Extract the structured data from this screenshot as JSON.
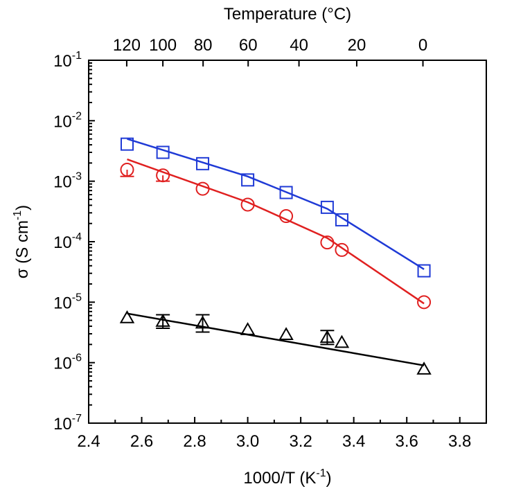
{
  "chart_data": {
    "type": "scatter",
    "xlabel": "1000/T (K",
    "xlabel_sup": "-1",
    "xlabel_close": ")",
    "ylabel": "σ (S cm",
    "ylabel_sup": "-1",
    "ylabel_close": ")",
    "top_xlabel": "Temperature (°C)",
    "xlim": [
      2.4,
      3.9
    ],
    "ylim_log10": [
      -7,
      -1
    ],
    "y_scale": "log",
    "x_ticks": [
      {
        "value": 2.4,
        "label": "2.4"
      },
      {
        "value": 2.6,
        "label": "2.6"
      },
      {
        "value": 2.8,
        "label": "2.8"
      },
      {
        "value": 3.0,
        "label": "3.0"
      },
      {
        "value": 3.2,
        "label": "3.2"
      },
      {
        "value": 3.4,
        "label": "3.4"
      },
      {
        "value": 3.6,
        "label": "3.6"
      },
      {
        "value": 3.8,
        "label": "3.8"
      }
    ],
    "y_ticks": [
      {
        "exp": -1,
        "base": "10",
        "sup": "-1"
      },
      {
        "exp": -2,
        "base": "10",
        "sup": "-2"
      },
      {
        "exp": -3,
        "base": "10",
        "sup": "-3"
      },
      {
        "exp": -4,
        "base": "10",
        "sup": "-4"
      },
      {
        "exp": -5,
        "base": "10",
        "sup": "-5"
      },
      {
        "exp": -6,
        "base": "10",
        "sup": "-6"
      },
      {
        "exp": -7,
        "base": "10",
        "sup": "-7"
      }
    ],
    "top_ticks": [
      {
        "celsius": 120,
        "label": "120"
      },
      {
        "celsius": 100,
        "label": "100"
      },
      {
        "celsius": 80,
        "label": "80"
      },
      {
        "celsius": 60,
        "label": "60"
      },
      {
        "celsius": 40,
        "label": "40"
      },
      {
        "celsius": 20,
        "label": "20"
      },
      {
        "celsius": 0,
        "label": "0"
      }
    ],
    "series": [
      {
        "marker": "square",
        "color": "#1f3ad6",
        "points": [
          {
            "x": 2.545,
            "y": 0.0041
          },
          {
            "x": 2.68,
            "y": 0.003
          },
          {
            "x": 2.83,
            "y": 0.00195
          },
          {
            "x": 3.0,
            "y": 0.00105
          },
          {
            "x": 3.145,
            "y": 0.00065
          },
          {
            "x": 3.3,
            "y": 0.00037
          },
          {
            "x": 3.355,
            "y": 0.00023
          },
          {
            "x": 3.665,
            "y": 3.3e-05
          }
        ],
        "fit": [
          {
            "x": 2.545,
            "y": 0.005
          },
          {
            "x": 3.0,
            "y": 0.0012
          },
          {
            "x": 3.3,
            "y": 0.00035
          },
          {
            "x": 3.665,
            "y": 3.5e-05
          }
        ]
      },
      {
        "marker": "circle",
        "color": "#e02020",
        "points": [
          {
            "x": 2.545,
            "y": 0.00155,
            "err_low": 0.0012
          },
          {
            "x": 2.68,
            "y": 0.00125,
            "err_low": 0.001
          },
          {
            "x": 2.83,
            "y": 0.00075
          },
          {
            "x": 3.0,
            "y": 0.00041
          },
          {
            "x": 3.145,
            "y": 0.000265
          },
          {
            "x": 3.3,
            "y": 9.7e-05
          },
          {
            "x": 3.355,
            "y": 7.3e-05
          },
          {
            "x": 3.665,
            "y": 1e-05
          }
        ],
        "fit": [
          {
            "x": 2.545,
            "y": 0.0023
          },
          {
            "x": 3.0,
            "y": 0.00045
          },
          {
            "x": 3.3,
            "y": 0.000115
          },
          {
            "x": 3.665,
            "y": 9.5e-06
          }
        ]
      },
      {
        "marker": "triangle",
        "color": "#000000",
        "points": [
          {
            "x": 2.545,
            "y": 5.5e-06
          },
          {
            "x": 2.68,
            "y": 4.8e-06,
            "err_low": 3.7e-06,
            "err_high": 6.2e-06
          },
          {
            "x": 2.83,
            "y": 4.5e-06,
            "err_low": 3.2e-06,
            "err_high": 6.2e-06
          },
          {
            "x": 3.0,
            "y": 3.5e-06
          },
          {
            "x": 3.145,
            "y": 2.9e-06
          },
          {
            "x": 3.3,
            "y": 2.6e-06,
            "err_low": 2e-06,
            "err_high": 3.4e-06
          },
          {
            "x": 3.355,
            "y": 2.15e-06
          },
          {
            "x": 3.665,
            "y": 7.8e-07
          }
        ],
        "fit": [
          {
            "x": 2.545,
            "y": 6.5e-06
          },
          {
            "x": 3.665,
            "y": 9e-07
          }
        ]
      }
    ]
  }
}
